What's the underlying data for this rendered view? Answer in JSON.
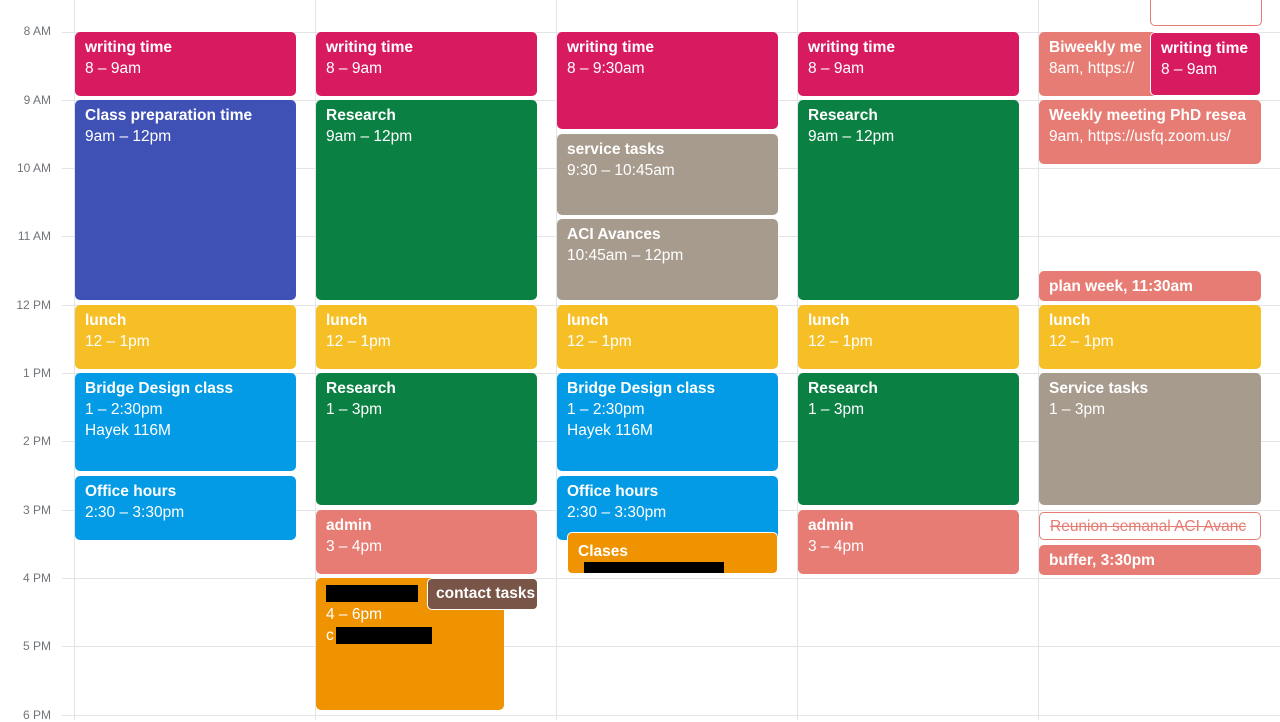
{
  "time_labels": [
    "8 AM",
    "9 AM",
    "10 AM",
    "11 AM",
    "12 PM",
    "1 PM",
    "2 PM",
    "3 PM",
    "4 PM",
    "5 PM",
    "6 PM"
  ],
  "colors": {
    "red": "#d81b60",
    "indigo": "#3f51b5",
    "green": "#0b8043",
    "grey": "#a79b8e",
    "yellow": "#f6bf26",
    "blue": "#039be5",
    "salmon": "#e67c73",
    "orange": "#f09300",
    "brown": "#795548"
  },
  "days": [
    {
      "events": [
        {
          "title": "writing time",
          "lines": [
            "8 – 9am"
          ],
          "color": "red"
        },
        {
          "title": "Class preparation time",
          "lines": [
            "9am – 12pm"
          ],
          "color": "indigo"
        },
        {
          "title": "lunch",
          "lines": [
            "12 – 1pm"
          ],
          "color": "yellow"
        },
        {
          "title": "Bridge Design class",
          "lines": [
            "1 – 2:30pm",
            "Hayek 116M"
          ],
          "color": "blue"
        },
        {
          "title": "Office hours",
          "lines": [
            "2:30 – 3:30pm"
          ],
          "color": "blue"
        }
      ]
    },
    {
      "events": [
        {
          "title": "writing time",
          "lines": [
            "8 – 9am"
          ],
          "color": "red"
        },
        {
          "title": "Research",
          "lines": [
            "9am – 12pm"
          ],
          "color": "green"
        },
        {
          "title": "lunch",
          "lines": [
            "12 – 1pm"
          ],
          "color": "yellow"
        },
        {
          "title": "Research",
          "lines": [
            "1 – 3pm"
          ],
          "color": "green"
        },
        {
          "title": "admin",
          "lines": [
            "3 – 4pm"
          ],
          "color": "salmon"
        },
        {
          "title": "",
          "lines": [
            "4 – 6pm",
            "c"
          ],
          "color": "orange"
        },
        {
          "title": "contact tasks",
          "lines": [],
          "color": "brown"
        }
      ]
    },
    {
      "events": [
        {
          "title": "writing time",
          "lines": [
            "8 – 9:30am"
          ],
          "color": "red"
        },
        {
          "title": "service tasks",
          "lines": [
            "9:30 – 10:45am"
          ],
          "color": "grey"
        },
        {
          "title": "ACI Avances",
          "lines": [
            "10:45am – 12pm"
          ],
          "color": "grey"
        },
        {
          "title": "lunch",
          "lines": [
            "12 – 1pm"
          ],
          "color": "yellow"
        },
        {
          "title": "Bridge Design class",
          "lines": [
            "1 – 2:30pm",
            "Hayek 116M"
          ],
          "color": "blue"
        },
        {
          "title": "Office hours",
          "lines": [
            "2:30 – 3:30pm"
          ],
          "color": "blue"
        },
        {
          "title": "Clases",
          "lines": [],
          "color": "orange"
        }
      ]
    },
    {
      "events": [
        {
          "title": "writing time",
          "lines": [
            "8 – 9am"
          ],
          "color": "red"
        },
        {
          "title": "Research",
          "lines": [
            "9am – 12pm"
          ],
          "color": "green"
        },
        {
          "title": "lunch",
          "lines": [
            "12 – 1pm"
          ],
          "color": "yellow"
        },
        {
          "title": "Research",
          "lines": [
            "1 – 3pm"
          ],
          "color": "green"
        },
        {
          "title": "admin",
          "lines": [
            "3 – 4pm"
          ],
          "color": "salmon"
        }
      ]
    },
    {
      "events": [
        {
          "title": "Biweekly me",
          "lines": [
            "8am, https://"
          ],
          "color": "salmon"
        },
        {
          "title": "writing time",
          "lines": [
            "8 – 9am"
          ],
          "color": "red"
        },
        {
          "title": "Weekly meeting PhD resea",
          "lines": [
            "9am, https://usfq.zoom.us/"
          ],
          "color": "salmon"
        },
        {
          "title": "plan week, 11:30am",
          "lines": [],
          "color": "salmon"
        },
        {
          "title": "lunch",
          "lines": [
            "12 – 1pm"
          ],
          "color": "yellow"
        },
        {
          "title": "Service tasks",
          "lines": [
            "1 – 3pm"
          ],
          "color": "grey"
        },
        {
          "title": "Reunion semanal ACI Avanc",
          "lines": [],
          "color": "salmon"
        },
        {
          "title": "buffer, 3:30pm",
          "lines": [],
          "color": "salmon"
        }
      ]
    }
  ]
}
